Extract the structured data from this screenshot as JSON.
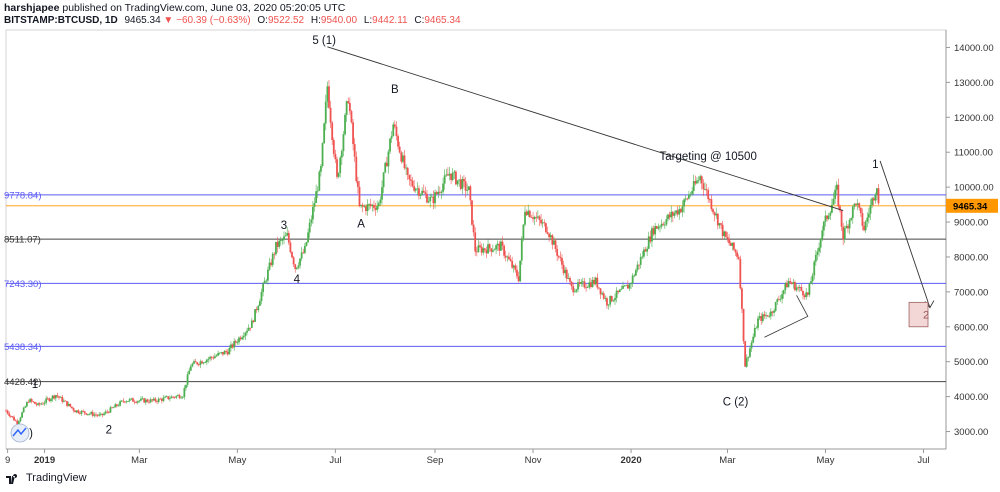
{
  "header": {
    "line1": "harshjapee published on TradingView.com, June 03, 2020 05:20:05 UTC",
    "symbol": "BITSTAMP:BTCUSD, 1D",
    "last": "9465.34",
    "change": "▼ −60.39 (−0.63%)",
    "o_label": "O:",
    "o_value": "9522.52",
    "h_label": "H:",
    "h_value": "9540.00",
    "l_label": "L:",
    "l_value": "9442.11",
    "c_label": "C:",
    "c_value": "9465.34"
  },
  "footer": {
    "brand": "TradingView"
  },
  "colors": {
    "up": "#4caf50",
    "down": "#ef5350",
    "hline_blue": "#5b5bf5",
    "hline_dark": "#454545",
    "last_price": "#ff9800"
  },
  "chart_data": {
    "type": "candlestick",
    "title": "",
    "xlabel": "",
    "ylabel": "",
    "ylim": [
      2500,
      14500
    ],
    "y_ticks": [
      "14000.00",
      "13000.00",
      "12000.00",
      "11000.00",
      "10000.00",
      "9000.00",
      "8000.00",
      "7000.00",
      "6000.00",
      "5000.00",
      "4000.00",
      "3000.00"
    ],
    "y_tick_values": [
      14000,
      13000,
      12000,
      11000,
      10000,
      9000,
      8000,
      7000,
      6000,
      5000,
      4000,
      3000
    ],
    "x_ticks": [
      "9",
      "2019",
      "Mar",
      "May",
      "Jul",
      "Sep",
      "Nov",
      "2020",
      "Mar",
      "May",
      "Jul"
    ],
    "x_tick_dates": [
      "2018-12-09",
      "2019-01-01",
      "2019-03-01",
      "2019-05-01",
      "2019-07-01",
      "2019-09-01",
      "2019-11-01",
      "2020-01-01",
      "2020-03-01",
      "2020-05-01",
      "2020-07-01"
    ],
    "x_range": [
      "2018-12-08",
      "2020-07-15"
    ],
    "last_price": "9465.34",
    "last_price_value": 9465.34,
    "horizontal_levels": [
      {
        "label": "9778.84",
        "value": 9778.84,
        "color": "blue"
      },
      {
        "label": "8511.07",
        "value": 8511.07,
        "color": "dark"
      },
      {
        "label": "7243.30",
        "value": 7243.3,
        "color": "blue"
      },
      {
        "label": "5438.34",
        "value": 5438.34,
        "color": "blue"
      },
      {
        "label": "4428.42",
        "value": 4428.42,
        "color": "dark"
      }
    ],
    "visible_level_labels": [
      "9778.84)",
      "8511.07)",
      "7243.30)",
      "5438.34)",
      "4428.42)"
    ],
    "price_path": [
      [
        "2018-12-08",
        3600
      ],
      [
        "2018-12-15",
        3250
      ],
      [
        "2018-12-22",
        3900
      ],
      [
        "2018-12-28",
        3750
      ],
      [
        "2019-01-08",
        4050
      ],
      [
        "2019-01-20",
        3600
      ],
      [
        "2019-02-05",
        3450
      ],
      [
        "2019-02-20",
        3900
      ],
      [
        "2019-03-10",
        3880
      ],
      [
        "2019-03-28",
        4050
      ],
      [
        "2019-04-02",
        4900
      ],
      [
        "2019-04-25",
        5300
      ],
      [
        "2019-05-10",
        6100
      ],
      [
        "2019-05-25",
        8300
      ],
      [
        "2019-06-01",
        8600
      ],
      [
        "2019-06-06",
        7700
      ],
      [
        "2019-06-12",
        8200
      ],
      [
        "2019-06-22",
        10500
      ],
      [
        "2019-06-26",
        12900
      ],
      [
        "2019-07-02",
        10200
      ],
      [
        "2019-07-09",
        12600
      ],
      [
        "2019-07-16",
        9400
      ],
      [
        "2019-07-28",
        9500
      ],
      [
        "2019-08-06",
        11800
      ],
      [
        "2019-08-15",
        10200
      ],
      [
        "2019-08-30",
        9600
      ],
      [
        "2019-09-10",
        10400
      ],
      [
        "2019-09-22",
        9900
      ],
      [
        "2019-09-26",
        8200
      ],
      [
        "2019-10-12",
        8300
      ],
      [
        "2019-10-23",
        7400
      ],
      [
        "2019-10-27",
        9400
      ],
      [
        "2019-11-10",
        8800
      ],
      [
        "2019-11-25",
        7100
      ],
      [
        "2019-12-10",
        7300
      ],
      [
        "2019-12-17",
        6700
      ],
      [
        "2019-12-31",
        7200
      ],
      [
        "2020-01-15",
        8800
      ],
      [
        "2020-02-01",
        9400
      ],
      [
        "2020-02-13",
        10300
      ],
      [
        "2020-02-28",
        8600
      ],
      [
        "2020-03-08",
        8000
      ],
      [
        "2020-03-12",
        4900
      ],
      [
        "2020-03-20",
        6200
      ],
      [
        "2020-03-28",
        6400
      ],
      [
        "2020-04-08",
        7300
      ],
      [
        "2020-04-20",
        6900
      ],
      [
        "2020-04-29",
        8800
      ],
      [
        "2020-05-08",
        9900
      ],
      [
        "2020-05-12",
        8600
      ],
      [
        "2020-05-20",
        9600
      ],
      [
        "2020-05-25",
        8800
      ],
      [
        "2020-06-02",
        10100
      ],
      [
        "2020-06-03",
        9465
      ]
    ],
    "annotations": [
      {
        "text": "5 (1)",
        "date": "2019-06-24",
        "price": 14100
      },
      {
        "text": "B",
        "date": "2019-08-07",
        "price": 12700
      },
      {
        "text": "3",
        "date": "2019-05-30",
        "price": 8800
      },
      {
        "text": "4",
        "date": "2019-06-07",
        "price": 7250
      },
      {
        "text": "A",
        "date": "2019-07-17",
        "price": 8850
      },
      {
        "text": "1",
        "date": "2018-12-26",
        "price": 4250
      },
      {
        "text": "2",
        "date": "2019-02-10",
        "price": 2950
      },
      {
        "text": "((4))",
        "date": "2018-12-18",
        "price": 2850
      },
      {
        "text": "Targeting @ 10500",
        "date": "2020-02-18",
        "price": 10780
      },
      {
        "text": "1",
        "date": "2020-06-01",
        "price": 10550
      },
      {
        "text": "C (2)",
        "date": "2020-03-06",
        "price": 3750
      }
    ],
    "target_box_label": "2",
    "trend_line": [
      [
        "2019-06-26",
        14020
      ],
      [
        "2020-05-12",
        9330
      ]
    ]
  }
}
